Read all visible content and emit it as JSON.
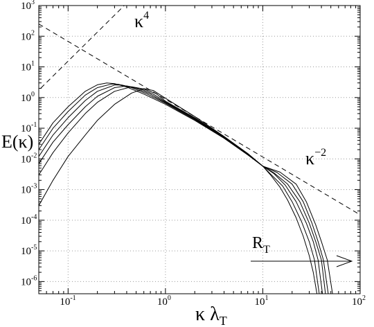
{
  "chart_data": {
    "type": "line",
    "xscale": "log",
    "yscale": "log",
    "xlim": [
      0.05,
      100
    ],
    "ylim": [
      4e-07,
      1000
    ],
    "grid": true,
    "xlabel": {
      "base": "κ  λ",
      "sub": "T"
    },
    "ylabel": "E(κ)",
    "x_ticks": [
      {
        "value": 0.1,
        "mant": "10",
        "exp": "-1"
      },
      {
        "value": 1,
        "mant": "10",
        "exp": "0"
      },
      {
        "value": 10,
        "mant": "10",
        "exp": "1"
      },
      {
        "value": 100,
        "mant": "10",
        "exp": "2"
      }
    ],
    "y_ticks": [
      {
        "value": 1e-06,
        "mant": "10",
        "exp": "-6"
      },
      {
        "value": 1e-05,
        "mant": "10",
        "exp": "-5"
      },
      {
        "value": 0.0001,
        "mant": "10",
        "exp": "-4"
      },
      {
        "value": 0.001,
        "mant": "10",
        "exp": "-3"
      },
      {
        "value": 0.01,
        "mant": "10",
        "exp": "-2"
      },
      {
        "value": 0.1,
        "mant": "10",
        "exp": "-1"
      },
      {
        "value": 1,
        "mant": "10",
        "exp": "0"
      },
      {
        "value": 10,
        "mant": "10",
        "exp": "1"
      },
      {
        "value": 100,
        "mant": "10",
        "exp": "2"
      },
      {
        "value": 1000,
        "mant": "10",
        "exp": "3"
      }
    ],
    "reference_lines": [
      {
        "annotation": {
          "base": "κ",
          "sup": "4"
        },
        "points": [
          [
            0.03,
            0.35
          ],
          [
            0.4,
            1200
          ]
        ]
      },
      {
        "annotation": {
          "base": "κ",
          "sup": "−2"
        },
        "points": [
          [
            0.05,
            250
          ],
          [
            100,
            0.00015
          ]
        ]
      }
    ],
    "annotation_rt": {
      "base": "R",
      "sub": "T"
    },
    "series": [
      {
        "points": [
          [
            0.05,
            0.03
          ],
          [
            0.07,
            0.15
          ],
          [
            0.1,
            0.5
          ],
          [
            0.15,
            1.6
          ],
          [
            0.2,
            2.6
          ],
          [
            0.25,
            3.0
          ],
          [
            0.3,
            2.85
          ],
          [
            0.4,
            2.2
          ],
          [
            0.6,
            1.3
          ],
          [
            1,
            0.6
          ],
          [
            2,
            0.18
          ],
          [
            4,
            0.047
          ],
          [
            7,
            0.0135
          ],
          [
            10,
            0.0058
          ],
          [
            12,
            0.003
          ],
          [
            15,
            0.0012
          ],
          [
            18,
            0.00045
          ],
          [
            22,
            0.00012
          ],
          [
            26,
            3e-05
          ],
          [
            30,
            7e-06
          ],
          [
            33,
            2e-06
          ],
          [
            36,
            4e-07
          ]
        ]
      },
      {
        "points": [
          [
            0.05,
            0.02
          ],
          [
            0.07,
            0.1
          ],
          [
            0.1,
            0.35
          ],
          [
            0.15,
            1.2
          ],
          [
            0.2,
            2.1
          ],
          [
            0.28,
            2.75
          ],
          [
            0.33,
            2.7
          ],
          [
            0.45,
            2.1
          ],
          [
            0.65,
            1.3
          ],
          [
            1,
            0.65
          ],
          [
            2,
            0.19
          ],
          [
            4,
            0.048
          ],
          [
            7,
            0.0138
          ],
          [
            10,
            0.0058
          ],
          [
            12,
            0.0032
          ],
          [
            16,
            0.0013
          ],
          [
            20,
            0.0004
          ],
          [
            25,
            9e-05
          ],
          [
            30,
            2e-05
          ],
          [
            34,
            5e-06
          ],
          [
            38,
            4e-07
          ]
        ]
      },
      {
        "points": [
          [
            0.05,
            0.012
          ],
          [
            0.07,
            0.06
          ],
          [
            0.1,
            0.22
          ],
          [
            0.15,
            0.8
          ],
          [
            0.2,
            1.6
          ],
          [
            0.3,
            2.55
          ],
          [
            0.36,
            2.55
          ],
          [
            0.5,
            2.0
          ],
          [
            0.7,
            1.3
          ],
          [
            1,
            0.68
          ],
          [
            2,
            0.2
          ],
          [
            4,
            0.05
          ],
          [
            7,
            0.0141
          ],
          [
            10,
            0.0058
          ],
          [
            13,
            0.0033
          ],
          [
            17,
            0.0014
          ],
          [
            22,
            0.0004
          ],
          [
            28,
            8e-05
          ],
          [
            33,
            2e-05
          ],
          [
            37,
            5e-06
          ],
          [
            41,
            4e-07
          ]
        ]
      },
      {
        "points": [
          [
            0.05,
            0.007
          ],
          [
            0.07,
            0.035
          ],
          [
            0.1,
            0.13
          ],
          [
            0.15,
            0.5
          ],
          [
            0.2,
            1.1
          ],
          [
            0.3,
            2.1
          ],
          [
            0.4,
            2.4
          ],
          [
            0.55,
            1.95
          ],
          [
            0.75,
            1.3
          ],
          [
            1,
            0.72
          ],
          [
            2,
            0.21
          ],
          [
            4,
            0.051
          ],
          [
            7,
            0.0144
          ],
          [
            10,
            0.0058
          ],
          [
            13,
            0.0035
          ],
          [
            18,
            0.0015
          ],
          [
            24,
            0.0004
          ],
          [
            30,
            8e-05
          ],
          [
            35,
            2e-05
          ],
          [
            40,
            5e-06
          ],
          [
            44,
            4e-07
          ]
        ]
      },
      {
        "points": [
          [
            0.05,
            0.003
          ],
          [
            0.07,
            0.016
          ],
          [
            0.1,
            0.07
          ],
          [
            0.15,
            0.3
          ],
          [
            0.2,
            0.7
          ],
          [
            0.3,
            1.6
          ],
          [
            0.45,
            2.25
          ],
          [
            0.6,
            1.9
          ],
          [
            0.8,
            1.35
          ],
          [
            1,
            0.76
          ],
          [
            2,
            0.22
          ],
          [
            4,
            0.052
          ],
          [
            7,
            0.0147
          ],
          [
            10,
            0.0058
          ],
          [
            14,
            0.0036
          ],
          [
            20,
            0.0015
          ],
          [
            26,
            0.0004
          ],
          [
            32,
            8e-05
          ],
          [
            37,
            2e-05
          ],
          [
            42,
            5e-06
          ],
          [
            47,
            4e-07
          ]
        ]
      },
      {
        "points": [
          [
            0.05,
            0.0003
          ],
          [
            0.07,
            0.002
          ],
          [
            0.1,
            0.012
          ],
          [
            0.15,
            0.06
          ],
          [
            0.2,
            0.18
          ],
          [
            0.3,
            0.6
          ],
          [
            0.45,
            1.4
          ],
          [
            0.6,
            1.95
          ],
          [
            0.75,
            1.7
          ],
          [
            1,
            0.95
          ],
          [
            2,
            0.24
          ],
          [
            4,
            0.054
          ],
          [
            7,
            0.015
          ],
          [
            10,
            0.0058
          ],
          [
            15,
            0.0037
          ],
          [
            22,
            0.0015
          ],
          [
            28,
            0.0004
          ],
          [
            35,
            7e-05
          ],
          [
            40,
            2e-05
          ],
          [
            46,
            5e-06
          ],
          [
            52,
            4e-07
          ]
        ]
      }
    ]
  }
}
